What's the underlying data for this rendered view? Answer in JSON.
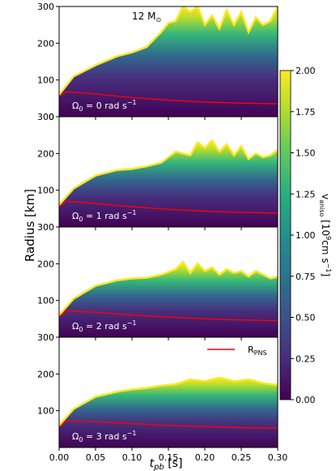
{
  "chart_data": {
    "type": "heatmap",
    "title": "",
    "mass_label_main": "12 M",
    "mass_label_sub": "⊙",
    "xlabel_main": "t",
    "xlabel_sub": "pb",
    "xlabel_unit": " [s]",
    "ylabel": "Radius [km]",
    "xlim": [
      0.0,
      0.3
    ],
    "ylim": [
      0,
      300
    ],
    "x_ticks": [
      "0.00",
      "0.05",
      "0.10",
      "0.15",
      "0.20",
      "0.25",
      "0.30"
    ],
    "y_ticks": [
      "0",
      "100",
      "200",
      "300"
    ],
    "colorbar": {
      "label_main": "v",
      "label_sub": "aniso",
      "label_unit_pre": " [10",
      "label_unit_exp": "9",
      "label_unit_post": "cm s",
      "label_unit_exp2": "−1",
      "label_unit_close": "]",
      "min": 0.0,
      "max": 2.0,
      "ticks": [
        "0.00",
        "0.25",
        "0.50",
        "0.75",
        "1.00",
        "1.25",
        "1.50",
        "1.75",
        "2.00"
      ],
      "colormap": "viridis"
    },
    "legend": {
      "label_main": "R",
      "label_sub": "PNS",
      "color": "#ff0000",
      "placement": "bottom-right panel, top-right"
    },
    "panels": [
      {
        "label_main": "Ω",
        "label_sub": "0",
        "label_text": " = 0 rad s",
        "label_exp": "−1",
        "shock_t": [
          0.0,
          0.02,
          0.05,
          0.08,
          0.1,
          0.12,
          0.14,
          0.15,
          0.16,
          0.17,
          0.18,
          0.19,
          0.2,
          0.21,
          0.22,
          0.23,
          0.24,
          0.25,
          0.26,
          0.27,
          0.28,
          0.29,
          0.3
        ],
        "shock_r": [
          60,
          110,
          140,
          165,
          175,
          190,
          230,
          255,
          260,
          300,
          285,
          300,
          250,
          275,
          240,
          290,
          250,
          285,
          230,
          270,
          250,
          260,
          300
        ],
        "pns_t": [
          0.0,
          0.01,
          0.05,
          0.1,
          0.15,
          0.2,
          0.25,
          0.3
        ],
        "pns_r": [
          55,
          68,
          62,
          52,
          45,
          40,
          37,
          35
        ]
      },
      {
        "label_main": "Ω",
        "label_sub": "0",
        "label_text": " = 1 rad s",
        "label_exp": "−1",
        "shock_t": [
          0.0,
          0.02,
          0.05,
          0.08,
          0.1,
          0.12,
          0.14,
          0.16,
          0.18,
          0.19,
          0.2,
          0.21,
          0.22,
          0.23,
          0.24,
          0.25,
          0.26,
          0.27,
          0.28,
          0.29,
          0.3
        ],
        "shock_r": [
          60,
          105,
          140,
          155,
          158,
          165,
          175,
          205,
          195,
          230,
          215,
          235,
          205,
          225,
          195,
          220,
          185,
          200,
          190,
          195,
          210
        ],
        "pns_t": [
          0.0,
          0.01,
          0.05,
          0.1,
          0.15,
          0.2,
          0.25,
          0.3
        ],
        "pns_r": [
          55,
          70,
          64,
          55,
          48,
          43,
          40,
          38
        ]
      },
      {
        "label_main": "Ω",
        "label_sub": "0",
        "label_text": " = 2 rad s",
        "label_exp": "−1",
        "shock_t": [
          0.0,
          0.02,
          0.05,
          0.08,
          0.1,
          0.12,
          0.14,
          0.16,
          0.17,
          0.18,
          0.19,
          0.2,
          0.21,
          0.22,
          0.23,
          0.24,
          0.25,
          0.26,
          0.27,
          0.28,
          0.29,
          0.3
        ],
        "shock_r": [
          60,
          105,
          140,
          155,
          160,
          162,
          170,
          185,
          205,
          175,
          200,
          180,
          190,
          170,
          185,
          175,
          180,
          165,
          180,
          170,
          160,
          165
        ],
        "pns_t": [
          0.0,
          0.01,
          0.05,
          0.1,
          0.15,
          0.2,
          0.25,
          0.3
        ],
        "pns_r": [
          55,
          72,
          68,
          60,
          55,
          50,
          47,
          45
        ]
      },
      {
        "label_main": "Ω",
        "label_sub": "0",
        "label_text": " = 3 rad s",
        "label_exp": "−1",
        "shock_t": [
          0.0,
          0.02,
          0.05,
          0.08,
          0.1,
          0.12,
          0.14,
          0.16,
          0.18,
          0.2,
          0.22,
          0.24,
          0.26,
          0.28,
          0.3
        ],
        "shock_r": [
          60,
          105,
          138,
          152,
          158,
          162,
          168,
          172,
          185,
          180,
          190,
          180,
          185,
          175,
          170
        ],
        "pns_t": [
          0.0,
          0.01,
          0.05,
          0.1,
          0.15,
          0.2,
          0.25,
          0.3
        ],
        "pns_r": [
          55,
          72,
          70,
          65,
          60,
          57,
          54,
          52
        ]
      }
    ]
  }
}
